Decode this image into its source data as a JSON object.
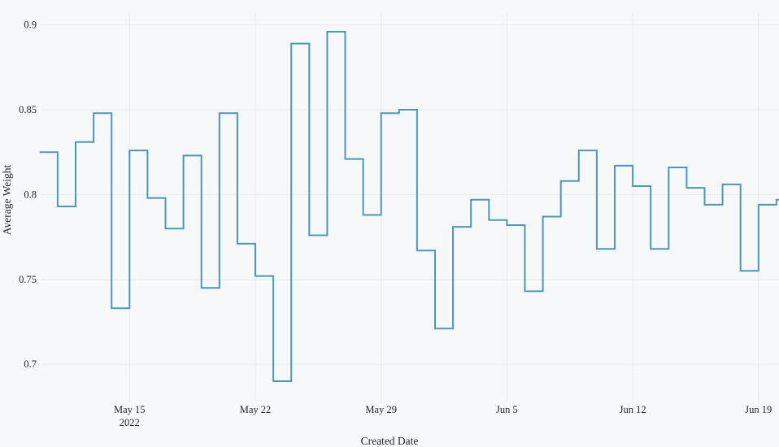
{
  "chart_data": {
    "type": "line",
    "interpolation": "step-after",
    "title": "",
    "xlabel": "Created Date",
    "ylabel": "Average Weight",
    "series_name": "Average Weight",
    "x": [
      "2022-05-10",
      "2022-05-11",
      "2022-05-12",
      "2022-05-13",
      "2022-05-14",
      "2022-05-15",
      "2022-05-16",
      "2022-05-17",
      "2022-05-18",
      "2022-05-19",
      "2022-05-20",
      "2022-05-21",
      "2022-05-22",
      "2022-05-23",
      "2022-05-24",
      "2022-05-25",
      "2022-05-26",
      "2022-05-27",
      "2022-05-28",
      "2022-05-29",
      "2022-05-30",
      "2022-05-31",
      "2022-06-01",
      "2022-06-02",
      "2022-06-03",
      "2022-06-04",
      "2022-06-05",
      "2022-06-06",
      "2022-06-07",
      "2022-06-08",
      "2022-06-09",
      "2022-06-10",
      "2022-06-11",
      "2022-06-12",
      "2022-06-13",
      "2022-06-14",
      "2022-06-15",
      "2022-06-16",
      "2022-06-17",
      "2022-06-18",
      "2022-06-19",
      "2022-06-20"
    ],
    "values": [
      0.825,
      0.793,
      0.831,
      0.848,
      0.733,
      0.826,
      0.798,
      0.78,
      0.823,
      0.745,
      0.848,
      0.771,
      0.752,
      0.69,
      0.889,
      0.776,
      0.896,
      0.821,
      0.788,
      0.848,
      0.85,
      0.767,
      0.721,
      0.781,
      0.797,
      0.785,
      0.782,
      0.743,
      0.787,
      0.808,
      0.826,
      0.768,
      0.817,
      0.805,
      0.768,
      0.816,
      0.804,
      0.794,
      0.806,
      0.755,
      0.794,
      0.797
    ],
    "y_ticks": [
      {
        "value": 0.7,
        "label": "0.7"
      },
      {
        "value": 0.75,
        "label": "0.75"
      },
      {
        "value": 0.8,
        "label": "0.8"
      },
      {
        "value": 0.85,
        "label": "0.85"
      },
      {
        "value": 0.9,
        "label": "0.9"
      }
    ],
    "x_ticks": [
      {
        "day_index": 5,
        "label": "May 15",
        "sublabel": "2022"
      },
      {
        "day_index": 12,
        "label": "May 22",
        "sublabel": ""
      },
      {
        "day_index": 19,
        "label": "May 29",
        "sublabel": ""
      },
      {
        "day_index": 26,
        "label": "Jun 5",
        "sublabel": ""
      },
      {
        "day_index": 33,
        "label": "Jun 12",
        "sublabel": ""
      },
      {
        "day_index": 40,
        "label": "Jun 19",
        "sublabel": ""
      }
    ],
    "ylim": [
      0.679,
      0.9075
    ],
    "grid": true,
    "legend": false,
    "colors": {
      "line": "#4d97b8",
      "grid": "#e8ebee",
      "background": "#f6f8f9",
      "text": "#1f2328"
    }
  }
}
